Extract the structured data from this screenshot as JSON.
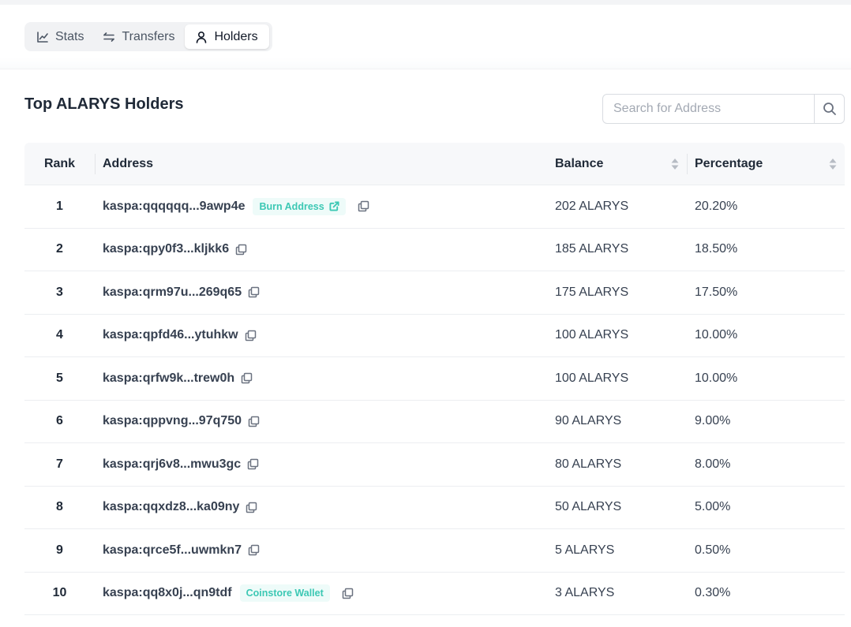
{
  "tabs": [
    {
      "label": "Stats",
      "icon": "chart-line-icon"
    },
    {
      "label": "Transfers",
      "icon": "arrows-left-right-icon"
    },
    {
      "label": "Holders",
      "icon": "user-icon",
      "active": true
    }
  ],
  "section": {
    "title": "Top ALARYS Holders"
  },
  "search": {
    "placeholder": "Search for Address",
    "value": ""
  },
  "table": {
    "columns": {
      "rank": "Rank",
      "address": "Address",
      "balance": "Balance",
      "percentage": "Percentage"
    },
    "rows": [
      {
        "rank": "1",
        "address": "kaspa:qqqqqq...9awp4e",
        "tag": "Burn Address",
        "tag_has_link": true,
        "balance": "202 ALARYS",
        "percentage": "20.20%"
      },
      {
        "rank": "2",
        "address": "kaspa:qpy0f3...kljkk6",
        "balance": "185 ALARYS",
        "percentage": "18.50%"
      },
      {
        "rank": "3",
        "address": "kaspa:qrm97u...269q65",
        "balance": "175 ALARYS",
        "percentage": "17.50%"
      },
      {
        "rank": "4",
        "address": "kaspa:qpfd46...ytuhkw",
        "balance": "100 ALARYS",
        "percentage": "10.00%"
      },
      {
        "rank": "5",
        "address": "kaspa:qrfw9k...trew0h",
        "balance": "100 ALARYS",
        "percentage": "10.00%"
      },
      {
        "rank": "6",
        "address": "kaspa:qppvng...97q750",
        "balance": "90 ALARYS",
        "percentage": "9.00%"
      },
      {
        "rank": "7",
        "address": "kaspa:qrj6v8...mwu3gc",
        "balance": "80 ALARYS",
        "percentage": "8.00%"
      },
      {
        "rank": "8",
        "address": "kaspa:qqxdz8...ka09ny",
        "balance": "50 ALARYS",
        "percentage": "5.00%"
      },
      {
        "rank": "9",
        "address": "kaspa:qrce5f...uwmkn7",
        "balance": "5 ALARYS",
        "percentage": "0.50%"
      },
      {
        "rank": "10",
        "address": "kaspa:qq8x0j...qn9tdf",
        "tag": "Coinstore Wallet",
        "tag_has_link": false,
        "balance": "3 ALARYS",
        "percentage": "0.30%"
      }
    ]
  },
  "colors": {
    "tag_text": "#3cc8b4",
    "tag_bg": "#eefbf9",
    "header_bg": "#f7f8fa"
  }
}
